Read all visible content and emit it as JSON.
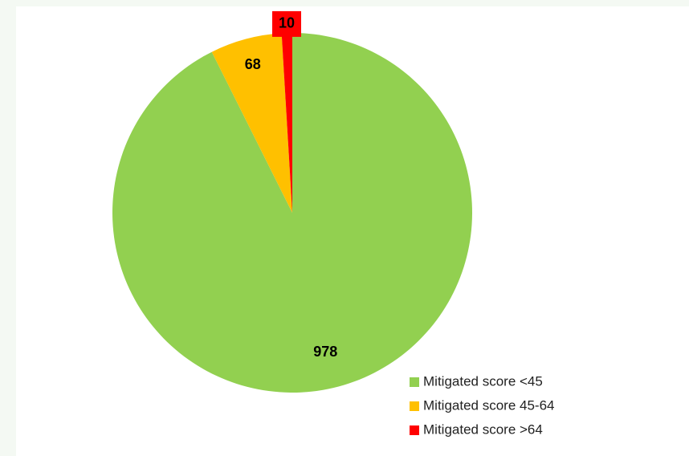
{
  "chart_data": {
    "type": "pie",
    "categories": [
      "Mitigated score <45",
      "Mitigated score 45-64",
      "Mitigated score >64"
    ],
    "values": [
      978,
      68,
      10
    ],
    "colors": [
      "#92d050",
      "#ffc000",
      "#ff0000"
    ],
    "legend": "bottom-right"
  }
}
